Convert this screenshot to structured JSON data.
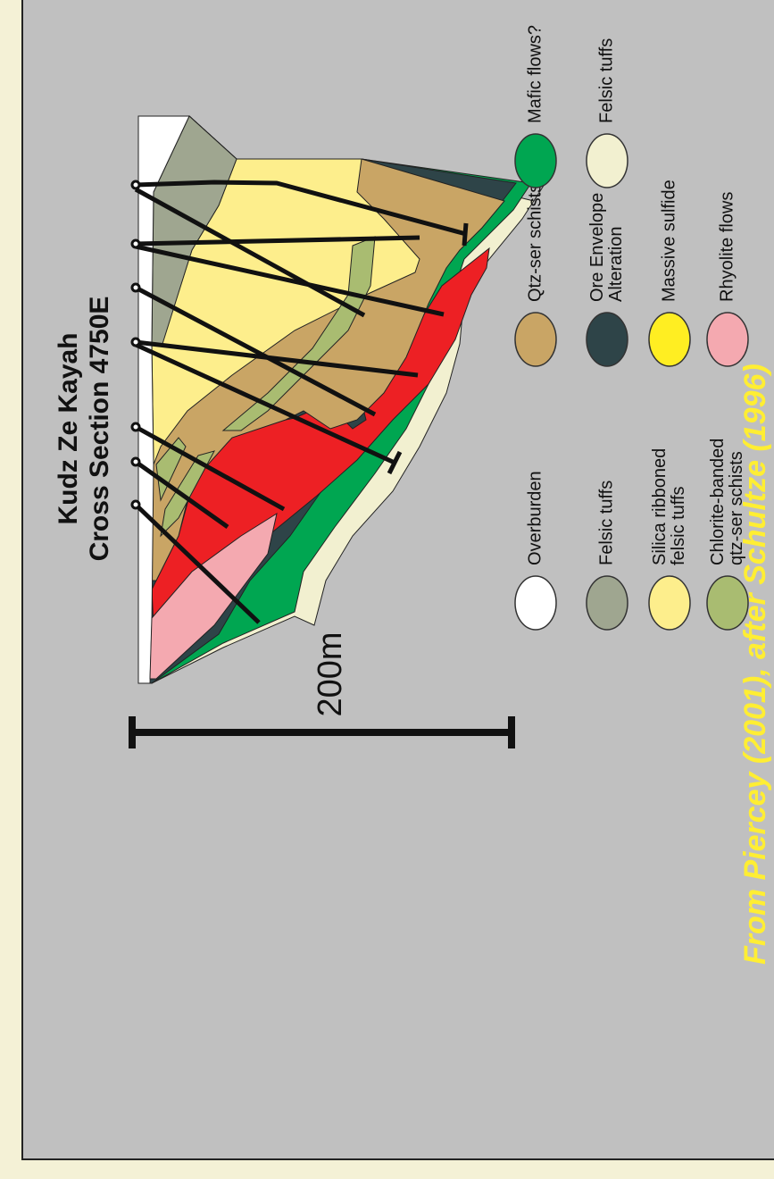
{
  "title": {
    "line1": "Kudz Ze Kayah",
    "line2": "Cross Section 4750E"
  },
  "scale_bar": {
    "label": "200m"
  },
  "legend": [
    {
      "lines": [
        "Overburden"
      ],
      "color": "#ffffff"
    },
    {
      "lines": [
        "Felsic tuffs"
      ],
      "color": "#9fa690"
    },
    {
      "lines": [
        "Silica ribboned",
        "felsic tuffs"
      ],
      "color": "#fdee8c"
    },
    {
      "lines": [
        "Chlorite-banded",
        "qtz-ser schists"
      ],
      "color": "#a9bc71"
    },
    {
      "lines": [
        "Qtz-ser schists"
      ],
      "color": "#c9a565"
    },
    {
      "lines": [
        "Ore Envelope",
        "Alteration"
      ],
      "color": "#2e4448"
    },
    {
      "lines": [
        "Massive sulfide"
      ],
      "color": "#ffee22"
    },
    {
      "lines": [
        "Rhyolite flows"
      ],
      "color": "#f4a9b0"
    },
    {
      "lines": [
        "Mafic flows?"
      ],
      "color": "#00a651"
    },
    {
      "lines": [
        "Felsic tuffs"
      ],
      "color": "#f2f0d0"
    }
  ],
  "credit": "From Piercey (2001), after Schultze (1996)"
}
